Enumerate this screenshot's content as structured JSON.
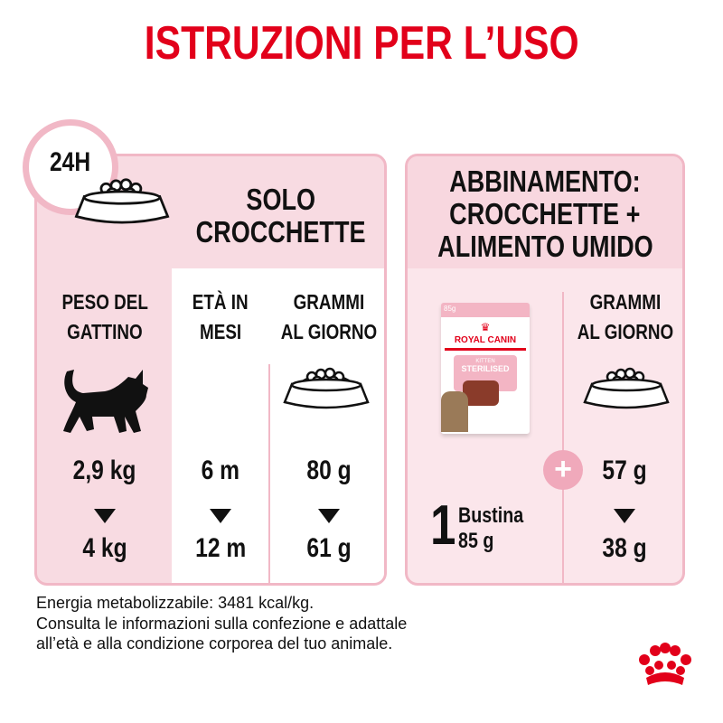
{
  "title": "ISTRUZIONI PER L’USO",
  "dry_only": {
    "clock_label": "24H",
    "heading": [
      "SOLO",
      "CROCCHETTE"
    ],
    "columns": [
      {
        "header": [
          "PESO DEL",
          "GATTINO"
        ],
        "from": "2,9 kg",
        "to": "4 kg",
        "icon": "kitten-silhouette-icon"
      },
      {
        "header": [
          "ETÀ IN",
          "MESI"
        ],
        "from": "6 m",
        "to": "12 m"
      },
      {
        "header": [
          "GRAMMI",
          "AL GIORNO"
        ],
        "from": "80 g",
        "to": "61 g",
        "icon": "kibble-bowl-icon"
      }
    ]
  },
  "mixed": {
    "heading": [
      "ABBINAMENTO:",
      "CROCCHETTE +",
      "ALIMENTO UMIDO"
    ],
    "pouch": {
      "weight": "85g",
      "brand": "ROYAL CANIN",
      "line": "KITTEN",
      "variant": "STERILISED"
    },
    "pouch_count": "1",
    "pouch_label": "Bustina",
    "pouch_weight": "85 g",
    "grams_header": [
      "GRAMMI",
      "AL GIORNO"
    ],
    "from": "57 g",
    "to": "38 g"
  },
  "footer": [
    "Energia metabolizzabile: 3481 kcal/kg.",
    "Consulta le informazioni sulla confezione e adattale",
    "all’età e alla condizione corporea del tuo animale."
  ],
  "colors": {
    "brand_red": "#e2001a",
    "card_border": "#f1b8c6",
    "card_fill": "#f8dbe2",
    "plus_badge": "#f0a9bb"
  }
}
